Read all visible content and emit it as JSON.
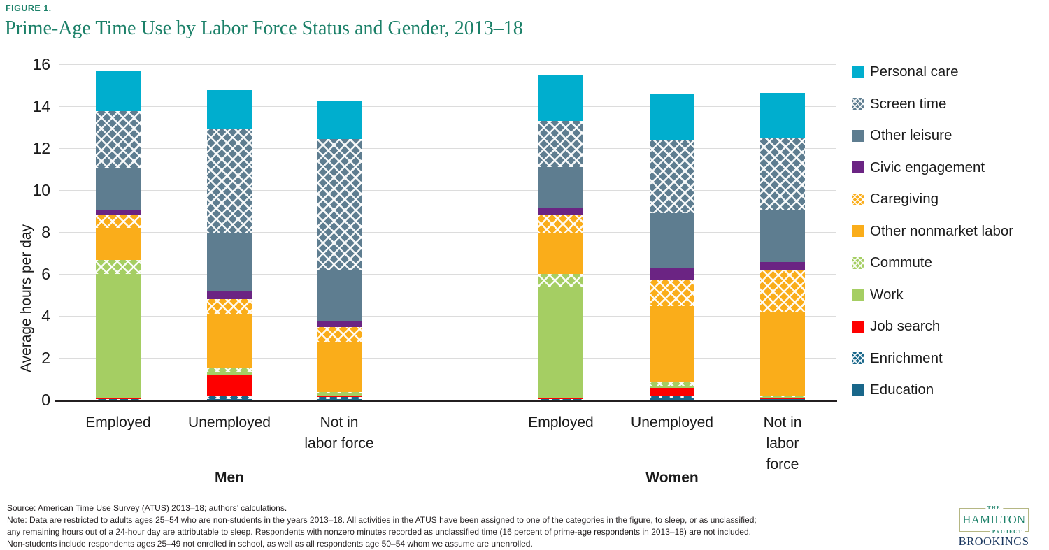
{
  "figure_label": "FIGURE 1.",
  "chart_data": {
    "type": "bar",
    "stacked": true,
    "title": "Prime-Age Time Use by Labor Force Status and Gender, 2013–18",
    "xlabel": "",
    "ylabel": "Average hours per day",
    "ylim": [
      0,
      16
    ],
    "yticks": [
      0,
      2,
      4,
      6,
      8,
      10,
      12,
      14,
      16
    ],
    "grid": true,
    "legend_position": "right",
    "groups": [
      "Men",
      "Women"
    ],
    "series": [
      {
        "key": "personal_care",
        "label": "Personal care",
        "color": "#00AECE",
        "pattern": "solid"
      },
      {
        "key": "screen_time",
        "label": "Screen time",
        "color": "#5E7D90",
        "pattern": "cross"
      },
      {
        "key": "other_leisure",
        "label": "Other leisure",
        "color": "#5E7D90",
        "pattern": "solid"
      },
      {
        "key": "civic_engagement",
        "label": "Civic engagement",
        "color": "#6B2483",
        "pattern": "solid"
      },
      {
        "key": "caregiving",
        "label": "Caregiving",
        "color": "#FAAD1A",
        "pattern": "cross"
      },
      {
        "key": "other_nonmarket_labor",
        "label": "Other nonmarket labor",
        "color": "#FAAD1A",
        "pattern": "solid"
      },
      {
        "key": "commute",
        "label": "Commute",
        "color": "#A5CE63",
        "pattern": "cross"
      },
      {
        "key": "work",
        "label": "Work",
        "color": "#A5CE63",
        "pattern": "solid"
      },
      {
        "key": "job_search",
        "label": "Job search",
        "color": "#FE0000",
        "pattern": "solid"
      },
      {
        "key": "enrichment",
        "label": "Enrichment",
        "color": "#19678A",
        "pattern": "cross"
      },
      {
        "key": "education",
        "label": "Education",
        "color": "#19678A",
        "pattern": "solid"
      }
    ],
    "bars": [
      {
        "group": "Men",
        "label": "Employed",
        "values": {
          "education": 0,
          "enrichment": 0.02,
          "job_search": 0.02,
          "work": 5.95,
          "commute": 0.65,
          "other_nonmarket_labor": 1.55,
          "caregiving": 0.6,
          "civic_engagement": 0.25,
          "other_leisure": 2.0,
          "screen_time": 2.7,
          "personal_care": 1.9
        }
      },
      {
        "group": "Men",
        "label": "Unemployed",
        "values": {
          "education": 0.03,
          "enrichment": 0.12,
          "job_search": 1.05,
          "work": 0.1,
          "commute": 0.2,
          "other_nonmarket_labor": 2.6,
          "caregiving": 0.7,
          "civic_engagement": 0.4,
          "other_leisure": 2.75,
          "screen_time": 4.95,
          "personal_care": 1.85
        }
      },
      {
        "group": "Men",
        "label": "Not in\nlabor force",
        "values": {
          "education": 0.02,
          "enrichment": 0.1,
          "job_search": 0.08,
          "work": 0.08,
          "commute": 0.08,
          "other_nonmarket_labor": 2.4,
          "caregiving": 0.7,
          "civic_engagement": 0.25,
          "other_leisure": 2.45,
          "screen_time": 6.25,
          "personal_care": 1.85
        }
      },
      {
        "group": "Women",
        "label": "Employed",
        "values": {
          "education": 0,
          "enrichment": 0.01,
          "job_search": 0.03,
          "work": 5.3,
          "commute": 0.63,
          "other_nonmarket_labor": 1.95,
          "caregiving": 0.9,
          "civic_engagement": 0.3,
          "other_leisure": 1.95,
          "screen_time": 2.2,
          "personal_care": 2.18
        }
      },
      {
        "group": "Women",
        "label": "Unemployed",
        "values": {
          "education": 0.05,
          "enrichment": 0.12,
          "job_search": 0.37,
          "work": 0.12,
          "commute": 0.18,
          "other_nonmarket_labor": 3.6,
          "caregiving": 1.25,
          "civic_engagement": 0.55,
          "other_leisure": 2.65,
          "screen_time": 3.5,
          "personal_care": 2.15
        }
      },
      {
        "group": "Women",
        "label": "Not in\nlabor force",
        "values": {
          "education": 0.02,
          "enrichment": 0.02,
          "job_search": 0.02,
          "work": 0.06,
          "commute": 0.04,
          "other_nonmarket_labor": 4.0,
          "caregiving": 2.0,
          "civic_engagement": 0.4,
          "other_leisure": 2.5,
          "screen_time": 3.4,
          "personal_care": 2.15
        }
      }
    ]
  },
  "footer": {
    "source": "Source: American Time Use Survey (ATUS) 2013–18; authors’ calculations.",
    "note": "Note: Data are restricted to adults ages 25–54 who are non-students in the years 2013–18. All activities in the ATUS have been assigned to one of the categories in the figure, to sleep, or as unclassified; any remaining hours out of a 24-hour day are attributable to sleep. Respondents with nonzero minutes recorded as unclassified time (16 percent of prime-age respondents in 2013–18) are not included. Non-students include respondents ages 25–49 not enrolled in school, as well as all respondents age 50–54 whom we assume are unenrolled."
  },
  "logo": {
    "the": "THE",
    "hamilton": "HAMILTON",
    "project": "PROJECT",
    "brookings": "BROOKINGS"
  }
}
